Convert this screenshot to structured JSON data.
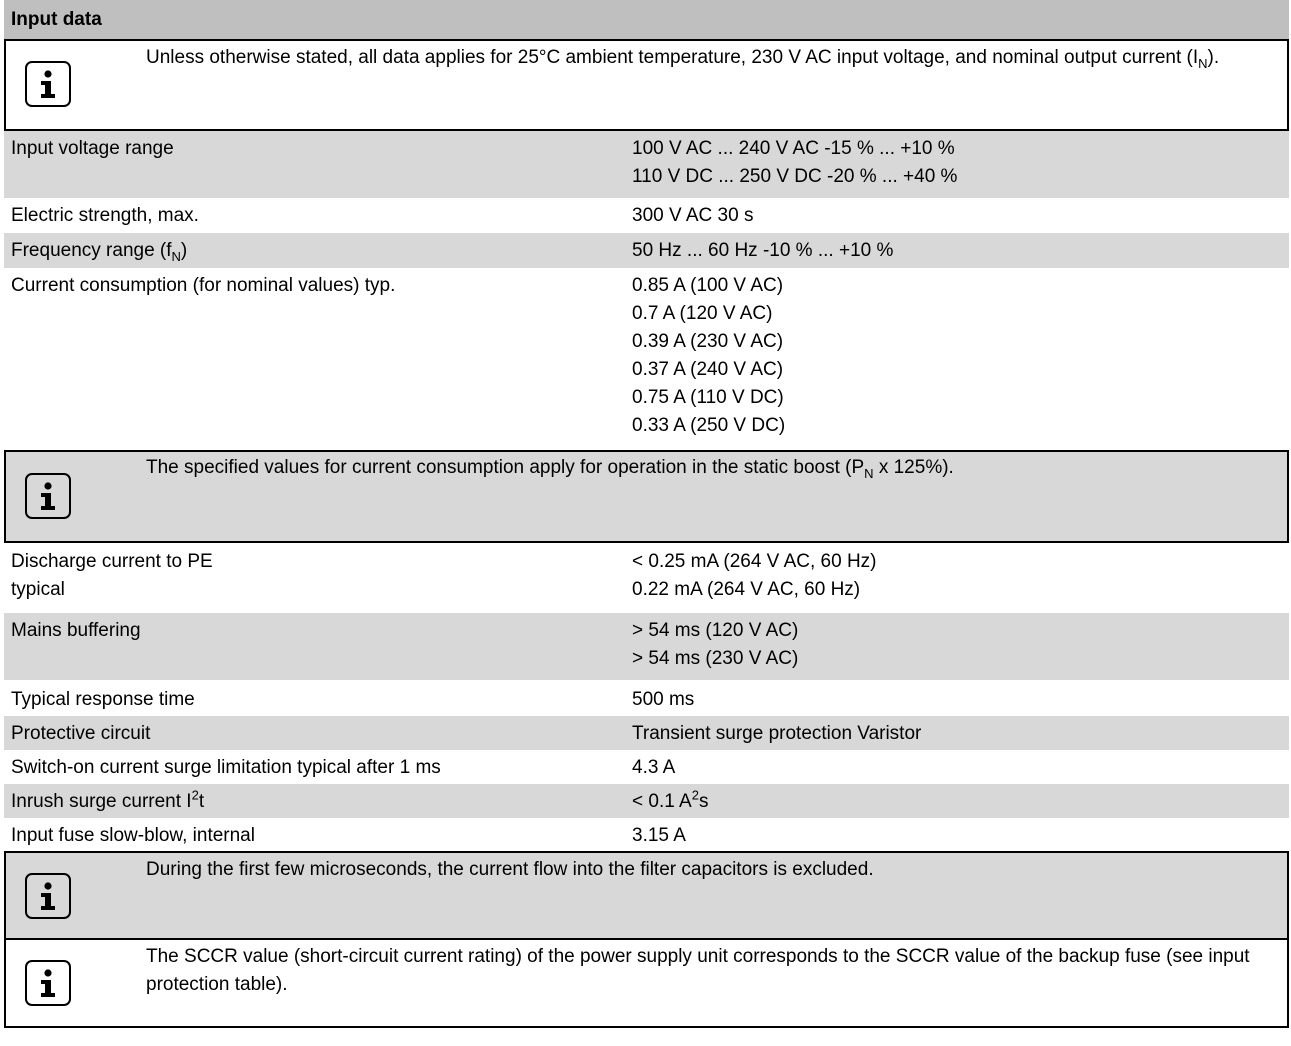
{
  "section_title": "Input data",
  "note1": {
    "text_a": "Unless otherwise stated, all data applies for 25°C ambient temperature, 230 V AC input voltage, and nominal output current (I",
    "text_sub": "N",
    "text_b": ")."
  },
  "rows_a": [
    {
      "label": "Input voltage range",
      "values": [
        "100 V AC ... 240 V AC -15 % ... +10 %",
        "110 V DC ... 250 V DC -20 % ... +40 %"
      ]
    },
    {
      "label": "Electric strength, max.",
      "values": [
        "300 V AC 30 s"
      ]
    },
    {
      "label_a": "Frequency range (f",
      "label_sub": "N",
      "label_b": ")",
      "values": [
        "50 Hz ... 60 Hz -10 % ... +10 %"
      ]
    },
    {
      "label": "Current consumption (for nominal values) typ.",
      "values": [
        "0.85 A (100 V AC)",
        "0.7 A (120 V AC)",
        "0.39 A (230 V AC)",
        "0.37 A (240 V AC)",
        "0.75 A (110 V DC)",
        "0.33 A (250 V DC)"
      ]
    }
  ],
  "note2": {
    "text_a": "The specified values for current consumption apply for operation in the static boost (P",
    "text_sub": "N",
    "text_b": " x 125%)."
  },
  "rows_b": [
    {
      "labels": [
        "Discharge current to PE",
        "typical"
      ],
      "values": [
        "< 0.25 mA (264 V AC, 60 Hz)",
        "0.22 mA (264 V AC, 60 Hz)"
      ]
    },
    {
      "label": "Mains buffering",
      "values": [
        "> 54 ms (120 V AC)",
        "> 54 ms (230 V AC)"
      ]
    },
    {
      "label": "Typical response time",
      "values": [
        "500 ms"
      ]
    },
    {
      "label": "Protective circuit",
      "values": [
        "Transient surge protection Varistor"
      ]
    },
    {
      "label": "Switch-on current surge limitation typical after 1 ms",
      "values": [
        "4.3 A"
      ]
    },
    {
      "label_a": "Inrush surge current I",
      "label_sup": "2",
      "label_b": "t",
      "value_a": "< 0.1 A",
      "value_sup": "2",
      "value_b": "s"
    },
    {
      "label": "Input fuse slow-blow, internal",
      "values": [
        "3.15 A"
      ]
    }
  ],
  "note3": {
    "text": "During the first few microseconds, the current flow into the filter capacitors is excluded."
  },
  "note4": {
    "text": "The SCCR value (short-circuit current rating) of the power supply unit corresponds to the SCCR value of the backup fuse (see input protection table)."
  },
  "icon": "info-icon"
}
